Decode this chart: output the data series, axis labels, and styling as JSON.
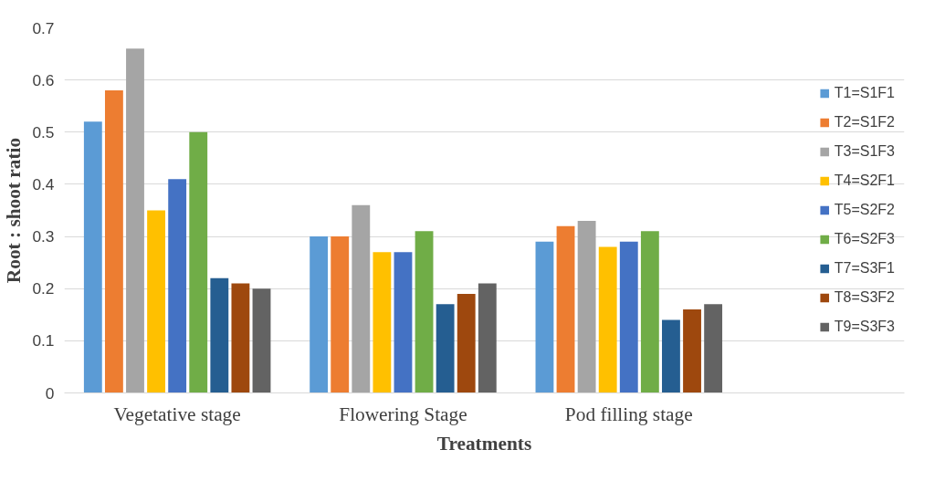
{
  "chart_data": {
    "type": "bar",
    "xlabel": "Treatments",
    "ylabel": "Root : shoot ratio",
    "categories": [
      "Vegetative stage",
      "Flowering Stage",
      "Pod filling stage"
    ],
    "ylim": [
      0,
      0.7
    ],
    "yticks": [
      {
        "value": 0,
        "label": "0"
      },
      0.1,
      0.2,
      0.3,
      0.4,
      0.5,
      0.6,
      0.7
    ],
    "grid": "y",
    "legend": "right",
    "series": [
      {
        "name": "T1=S1F1",
        "color": "#5b9bd5",
        "values": [
          0.52,
          0.3,
          0.29
        ]
      },
      {
        "name": "T2=S1F2",
        "color": "#ed7d31",
        "values": [
          0.58,
          0.3,
          0.32
        ]
      },
      {
        "name": "T3=S1F3",
        "color": "#a5a5a5",
        "values": [
          0.66,
          0.36,
          0.33
        ]
      },
      {
        "name": "T4=S2F1",
        "color": "#ffc000",
        "values": [
          0.35,
          0.27,
          0.28
        ]
      },
      {
        "name": "T5=S2F2",
        "color": "#4472c4",
        "values": [
          0.41,
          0.27,
          0.29
        ]
      },
      {
        "name": "T6=S2F3",
        "color": "#70ad47",
        "values": [
          0.5,
          0.31,
          0.31
        ]
      },
      {
        "name": "T7=S3F1",
        "color": "#255e91",
        "values": [
          0.22,
          0.17,
          0.14
        ]
      },
      {
        "name": "T8=S3F2",
        "color": "#9e480e",
        "values": [
          0.21,
          0.19,
          0.16
        ]
      },
      {
        "name": "T9=S3F3",
        "color": "#636363",
        "values": [
          0.2,
          0.21,
          0.17
        ]
      }
    ]
  }
}
